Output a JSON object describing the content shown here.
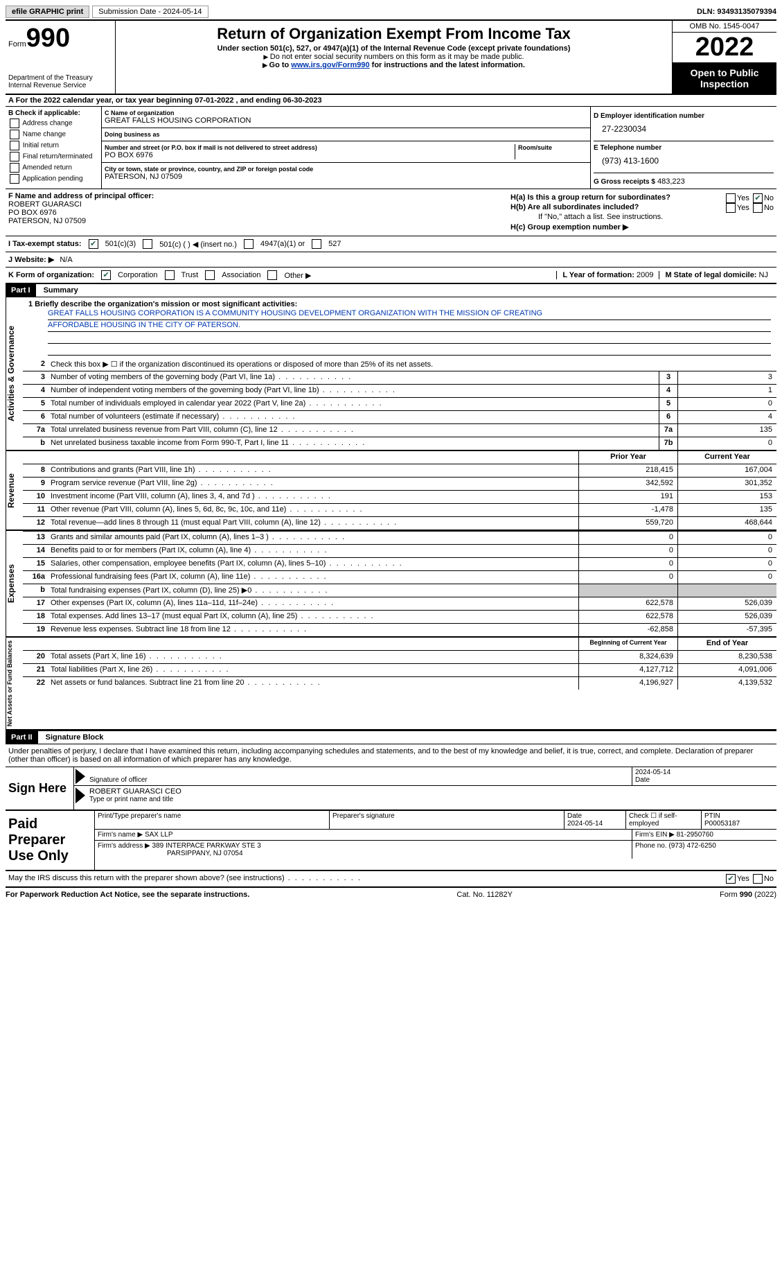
{
  "topbar": {
    "efile": "efile GRAPHIC print",
    "submission": "Submission Date - 2024-05-14",
    "dln": "DLN: 93493135079394"
  },
  "header": {
    "form_label": "Form",
    "form_num": "990",
    "dept": "Department of the Treasury Internal Revenue Service",
    "title": "Return of Organization Exempt From Income Tax",
    "sub1": "Under section 501(c), 527, or 4947(a)(1) of the Internal Revenue Code (except private foundations)",
    "sub2": "Do not enter social security numbers on this form as it may be made public.",
    "sub3_pre": "Go to ",
    "sub3_link": "www.irs.gov/Form990",
    "sub3_post": " for instructions and the latest information.",
    "omb": "OMB No. 1545-0047",
    "year": "2022",
    "open": "Open to Public Inspection"
  },
  "line_a": "A  For the 2022 calendar year, or tax year beginning 07-01-2022    , and ending 06-30-2023",
  "b": {
    "hdr": "B Check if applicable:",
    "items": [
      "Address change",
      "Name change",
      "Initial return",
      "Final return/terminated",
      "Amended return",
      "Application pending"
    ]
  },
  "c": {
    "name_lbl": "C Name of organization",
    "name": "GREAT FALLS HOUSING CORPORATION",
    "dba_lbl": "Doing business as",
    "dba": "",
    "street_lbl": "Number and street (or P.O. box if mail is not delivered to street address)",
    "room_lbl": "Room/suite",
    "street": "PO BOX 6976",
    "city_lbl": "City or town, state or province, country, and ZIP or foreign postal code",
    "city": "PATERSON, NJ  07509"
  },
  "d": {
    "ein_lbl": "D Employer identification number",
    "ein": "27-2230034",
    "tel_lbl": "E Telephone number",
    "tel": "(973) 413-1600",
    "gross_lbl": "G Gross receipts $",
    "gross": "483,223"
  },
  "f": {
    "lbl": "F Name and address of principal officer:",
    "name": "ROBERT GUARASCI",
    "street": "PO BOX 6976",
    "city": "PATERSON, NJ  07509"
  },
  "h": {
    "a_lbl": "H(a)  Is this a group return for subordinates?",
    "b_lbl": "H(b)  Are all subordinates included?",
    "b_note": "If \"No,\" attach a list. See instructions.",
    "c_lbl": "H(c)  Group exemption number ▶"
  },
  "i": {
    "lbl": "I   Tax-exempt status:",
    "opts": [
      "501(c)(3)",
      "501(c) (  ) ◀ (insert no.)",
      "4947(a)(1) or",
      "527"
    ]
  },
  "j": {
    "lbl": "J   Website: ▶",
    "val": "N/A"
  },
  "k": {
    "lbl": "K Form of organization:",
    "opts": [
      "Corporation",
      "Trust",
      "Association",
      "Other ▶"
    ],
    "l_lbl": "L Year of formation:",
    "l_val": "2009",
    "m_lbl": "M State of legal domicile:",
    "m_val": "NJ"
  },
  "part1": {
    "num": "Part I",
    "title": "Summary"
  },
  "mission": {
    "lbl": "1   Briefly describe the organization's mission or most significant activities:",
    "line1": "GREAT FALLS HOUSING CORPORATION IS A COMMUNITY HOUSING DEVELOPMENT ORGANIZATION WITH THE MISSION OF CREATING",
    "line2": "AFFORDABLE HOUSING IN THE CITY OF PATERSON."
  },
  "gov": {
    "tab": "Activities & Governance",
    "l2": "Check this box ▶ ☐ if the organization discontinued its operations or disposed of more than 25% of its net assets.",
    "rows": [
      {
        "n": "3",
        "t": "Number of voting members of the governing body (Part VI, line 1a)",
        "b": "3",
        "v": "3"
      },
      {
        "n": "4",
        "t": "Number of independent voting members of the governing body (Part VI, line 1b)",
        "b": "4",
        "v": "1"
      },
      {
        "n": "5",
        "t": "Total number of individuals employed in calendar year 2022 (Part V, line 2a)",
        "b": "5",
        "v": "0"
      },
      {
        "n": "6",
        "t": "Total number of volunteers (estimate if necessary)",
        "b": "6",
        "v": "4"
      },
      {
        "n": "7a",
        "t": "Total unrelated business revenue from Part VIII, column (C), line 12",
        "b": "7a",
        "v": "135"
      },
      {
        "n": "b",
        "t": "Net unrelated business taxable income from Form 990-T, Part I, line 11",
        "b": "7b",
        "v": "0"
      }
    ]
  },
  "rev": {
    "tab": "Revenue",
    "hdr_prior": "Prior Year",
    "hdr_curr": "Current Year",
    "rows": [
      {
        "n": "8",
        "t": "Contributions and grants (Part VIII, line 1h)",
        "p": "218,415",
        "c": "167,004"
      },
      {
        "n": "9",
        "t": "Program service revenue (Part VIII, line 2g)",
        "p": "342,592",
        "c": "301,352"
      },
      {
        "n": "10",
        "t": "Investment income (Part VIII, column (A), lines 3, 4, and 7d )",
        "p": "191",
        "c": "153"
      },
      {
        "n": "11",
        "t": "Other revenue (Part VIII, column (A), lines 5, 6d, 8c, 9c, 10c, and 11e)",
        "p": "-1,478",
        "c": "135"
      },
      {
        "n": "12",
        "t": "Total revenue—add lines 8 through 11 (must equal Part VIII, column (A), line 12)",
        "p": "559,720",
        "c": "468,644"
      }
    ]
  },
  "exp": {
    "tab": "Expenses",
    "rows": [
      {
        "n": "13",
        "t": "Grants and similar amounts paid (Part IX, column (A), lines 1–3 )",
        "p": "0",
        "c": "0"
      },
      {
        "n": "14",
        "t": "Benefits paid to or for members (Part IX, column (A), line 4)",
        "p": "0",
        "c": "0"
      },
      {
        "n": "15",
        "t": "Salaries, other compensation, employee benefits (Part IX, column (A), lines 5–10)",
        "p": "0",
        "c": "0"
      },
      {
        "n": "16a",
        "t": "Professional fundraising fees (Part IX, column (A), line 11e)",
        "p": "0",
        "c": "0"
      },
      {
        "n": "b",
        "t": "Total fundraising expenses (Part IX, column (D), line 25) ▶0",
        "p": "",
        "c": "",
        "shade": true
      },
      {
        "n": "17",
        "t": "Other expenses (Part IX, column (A), lines 11a–11d, 11f–24e)",
        "p": "622,578",
        "c": "526,039"
      },
      {
        "n": "18",
        "t": "Total expenses. Add lines 13–17 (must equal Part IX, column (A), line 25)",
        "p": "622,578",
        "c": "526,039"
      },
      {
        "n": "19",
        "t": "Revenue less expenses. Subtract line 18 from line 12",
        "p": "-62,858",
        "c": "-57,395"
      }
    ]
  },
  "net": {
    "tab": "Net Assets or Fund Balances",
    "hdr_beg": "Beginning of Current Year",
    "hdr_end": "End of Year",
    "rows": [
      {
        "n": "20",
        "t": "Total assets (Part X, line 16)",
        "p": "8,324,639",
        "c": "8,230,538"
      },
      {
        "n": "21",
        "t": "Total liabilities (Part X, line 26)",
        "p": "4,127,712",
        "c": "4,091,006"
      },
      {
        "n": "22",
        "t": "Net assets or fund balances. Subtract line 21 from line 20",
        "p": "4,196,927",
        "c": "4,139,532"
      }
    ]
  },
  "part2": {
    "num": "Part II",
    "title": "Signature Block"
  },
  "sig": {
    "decl": "Under penalties of perjury, I declare that I have examined this return, including accompanying schedules and statements, and to the best of my knowledge and belief, it is true, correct, and complete. Declaration of preparer (other than officer) is based on all information of which preparer has any knowledge.",
    "sign_here": "Sign Here",
    "sig_lbl": "Signature of officer",
    "date_lbl": "Date",
    "date": "2024-05-14",
    "name": "ROBERT GUARASCI CEO",
    "name_lbl": "Type or print name and title"
  },
  "prep": {
    "title": "Paid Preparer Use Only",
    "name_lbl": "Print/Type preparer's name",
    "sig_lbl": "Preparer's signature",
    "date_lbl": "Date",
    "date": "2024-05-14",
    "check_lbl": "Check ☐ if self-employed",
    "ptin_lbl": "PTIN",
    "ptin": "P00053187",
    "firm_lbl": "Firm's name   ▶",
    "firm": "SAX LLP",
    "ein_lbl": "Firm's EIN ▶",
    "ein": "81-2950760",
    "addr_lbl": "Firm's address ▶",
    "addr1": "389 INTERPACE PARKWAY STE 3",
    "addr2": "PARSIPPANY, NJ  07054",
    "phone_lbl": "Phone no.",
    "phone": "(973) 472-6250"
  },
  "discuss": "May the IRS discuss this return with the preparer shown above? (see instructions)",
  "footer": {
    "left": "For Paperwork Reduction Act Notice, see the separate instructions.",
    "mid": "Cat. No. 11282Y",
    "right": "Form 990 (2022)"
  }
}
